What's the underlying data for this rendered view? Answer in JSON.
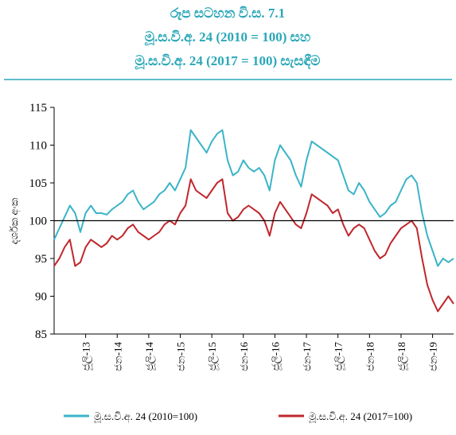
{
  "chart_data": {
    "type": "line",
    "title": "රූප සටහන වි.ස. 7.1",
    "subtitle": [
      "මූ.ස.වි.අ. 24 (2010 = 100) සහ",
      "මූ.ස.වි.අ. 24 (2017 = 100) සැසඳීම"
    ],
    "y_label": "දර්ශක අංක",
    "categories": [
      null,
      null,
      null,
      null,
      null,
      null,
      "ජූලි-13",
      null,
      null,
      null,
      null,
      null,
      "ජන-14",
      null,
      null,
      null,
      null,
      null,
      "ජූලි-14",
      null,
      null,
      null,
      null,
      null,
      "ජන-15",
      null,
      null,
      null,
      null,
      null,
      "ජූලි-15",
      null,
      null,
      null,
      null,
      null,
      "ජන-16",
      null,
      null,
      null,
      null,
      null,
      "ජූලි-16",
      null,
      null,
      null,
      null,
      null,
      "ජන-17",
      null,
      null,
      null,
      null,
      null,
      "ජූලි-17",
      null,
      null,
      null,
      null,
      null,
      "ජන-18",
      null,
      null,
      null,
      null,
      null,
      "ජූලි-18",
      null,
      null,
      null,
      null,
      null,
      "ජන-19",
      null,
      null,
      null,
      null
    ],
    "series": [
      {
        "name": "මූ.ස.වි.අ. 24 (2010=100)",
        "color": "#3bb4c8",
        "values": [
          97.5,
          99,
          100.5,
          102,
          101,
          98.5,
          101,
          102,
          101,
          101,
          100.8,
          101.5,
          102,
          102.5,
          103.5,
          104,
          102.5,
          101.5,
          102,
          102.5,
          103.5,
          104,
          105,
          104,
          105.5,
          107,
          112,
          111,
          110,
          109,
          110.5,
          111.5,
          112,
          108,
          106,
          106.5,
          108,
          107,
          106.5,
          107,
          106,
          104,
          108,
          110,
          109,
          108,
          106,
          104.5,
          108,
          110.5,
          110,
          109.5,
          109,
          108.5,
          108,
          106,
          104,
          103.5,
          105,
          104,
          102.5,
          101.5,
          100.5,
          101,
          102,
          102.5,
          104,
          105.5,
          106,
          105,
          101,
          98,
          96,
          94,
          95,
          94.5,
          95
        ]
      },
      {
        "name": "මූ.ස.වි.අ. 24 (2017=100)",
        "color": "#c0272d",
        "values": [
          94,
          95,
          96.5,
          97.5,
          94,
          94.5,
          96.5,
          97.5,
          97,
          96.5,
          97,
          98,
          97.5,
          98,
          99,
          99.5,
          98.5,
          98,
          97.5,
          98,
          98.5,
          99.5,
          100,
          99.5,
          101,
          102,
          105.5,
          104,
          103.5,
          103,
          104,
          105,
          105.5,
          101,
          100,
          100.5,
          101.5,
          102,
          101.5,
          101,
          100,
          98,
          101,
          102.5,
          101.5,
          100.5,
          99.5,
          99,
          101,
          103.5,
          103,
          102.5,
          102,
          101,
          101.5,
          99.5,
          98,
          99,
          99.5,
          99,
          97.5,
          96,
          95,
          95.5,
          97,
          98,
          99,
          99.5,
          100,
          99,
          95,
          91.5,
          89.5,
          88,
          89,
          90,
          89
        ]
      }
    ],
    "ylim": [
      85,
      115
    ],
    "yticks": [
      85,
      90,
      95,
      100,
      105,
      110,
      115
    ],
    "reference_line": 100,
    "legend": "bottom"
  }
}
